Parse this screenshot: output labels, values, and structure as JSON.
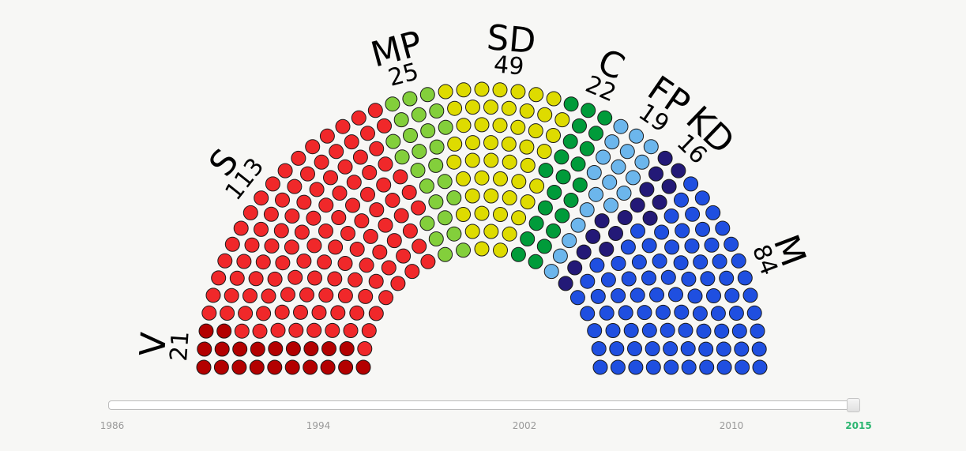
{
  "chart_data": {
    "type": "parliament",
    "total_seats": 349,
    "parties": [
      {
        "abbr": "V",
        "seats": 21,
        "color": "#b30000"
      },
      {
        "abbr": "S",
        "seats": 113,
        "color": "#f0282a"
      },
      {
        "abbr": "MP",
        "seats": 25,
        "color": "#83cf3b"
      },
      {
        "abbr": "SD",
        "seats": 49,
        "color": "#dedb00"
      },
      {
        "abbr": "C",
        "seats": 22,
        "color": "#009b3a"
      },
      {
        "abbr": "FP",
        "seats": 19,
        "color": "#6cb6ec"
      },
      {
        "abbr": "KD",
        "seats": 16,
        "color": "#231977"
      },
      {
        "abbr": "M",
        "seats": 84,
        "color": "#1f4fe0"
      }
    ]
  },
  "timeline": {
    "ticks": [
      "1986",
      "1994",
      "2002",
      "2010"
    ],
    "selected": "2015",
    "range": [
      1986,
      2015
    ]
  }
}
